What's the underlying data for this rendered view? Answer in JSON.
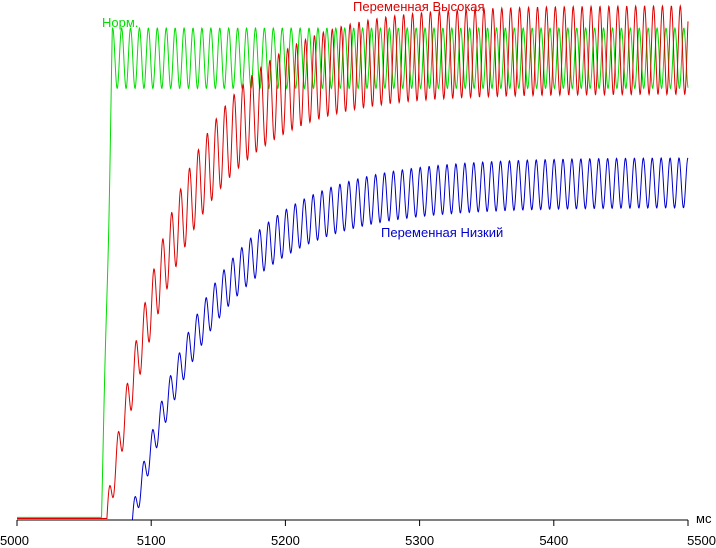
{
  "chart_data": {
    "type": "line",
    "title": "",
    "xlabel": "",
    "ylabel": "",
    "x_unit": "мс",
    "xlim": [
      5000,
      5500
    ],
    "ylim": [
      0,
      1
    ],
    "x_ticks": [
      5000,
      5100,
      5200,
      5300,
      5400,
      5500
    ],
    "x_tick_labels": [
      "5000",
      "5100",
      "5200",
      "5300",
      "5400",
      "5500"
    ],
    "grid": false,
    "legend": "inline labels next to curves",
    "series": [
      {
        "name": "Норм.",
        "color": "#00dd00",
        "description_values": {
          "baseline": 0.005,
          "rise_start_ms": 5063,
          "rise_end_ms": 5071,
          "plateau_mean": 0.888,
          "oscillation_amplitude": 0.058,
          "oscillation_period_ms": 6.65
        }
      },
      {
        "name": "Переменная Высокая",
        "color": "#dd0000",
        "description_values": {
          "baseline": 0.003,
          "rise_start_ms": 5067,
          "final_mean": 0.904,
          "time_constant_ms": 55,
          "oscillation_amplitude_final": 0.085,
          "oscillation_period_ms": 6.65
        }
      },
      {
        "name": "Переменная Низкий",
        "color": "#0000cc",
        "description_values": {
          "baseline": 0.0,
          "rise_start_ms": 5086,
          "final_mean": 0.649,
          "time_constant_ms": 60,
          "oscillation_amplitude_final": 0.048,
          "oscillation_period_ms": 6.65
        }
      }
    ]
  }
}
